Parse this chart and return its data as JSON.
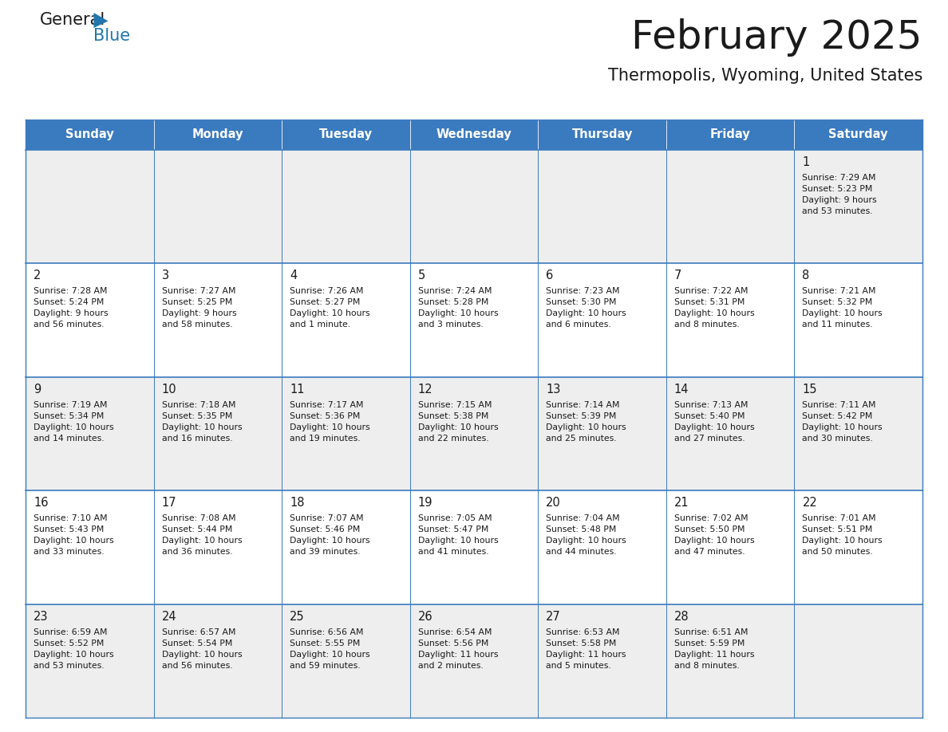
{
  "title": "February 2025",
  "subtitle": "Thermopolis, Wyoming, United States",
  "header_bg": "#3a7abf",
  "header_text_color": "#ffffff",
  "cell_bg_row0": "#eeeeee",
  "cell_bg_row1": "#ffffff",
  "border_color": "#3a7abf",
  "day_headers": [
    "Sunday",
    "Monday",
    "Tuesday",
    "Wednesday",
    "Thursday",
    "Friday",
    "Saturday"
  ],
  "title_color": "#1a1a1a",
  "subtitle_color": "#1a1a1a",
  "day_num_color": "#1a1a1a",
  "info_color": "#1a1a1a",
  "logo_general_color": "#1a1a1a",
  "logo_blue_color": "#2176ae",
  "calendar_data": [
    [
      null,
      null,
      null,
      null,
      null,
      null,
      {
        "day": 1,
        "sunrise": "7:29 AM",
        "sunset": "5:23 PM",
        "daylight": "9 hours\nand 53 minutes."
      }
    ],
    [
      {
        "day": 2,
        "sunrise": "7:28 AM",
        "sunset": "5:24 PM",
        "daylight": "9 hours\nand 56 minutes."
      },
      {
        "day": 3,
        "sunrise": "7:27 AM",
        "sunset": "5:25 PM",
        "daylight": "9 hours\nand 58 minutes."
      },
      {
        "day": 4,
        "sunrise": "7:26 AM",
        "sunset": "5:27 PM",
        "daylight": "10 hours\nand 1 minute."
      },
      {
        "day": 5,
        "sunrise": "7:24 AM",
        "sunset": "5:28 PM",
        "daylight": "10 hours\nand 3 minutes."
      },
      {
        "day": 6,
        "sunrise": "7:23 AM",
        "sunset": "5:30 PM",
        "daylight": "10 hours\nand 6 minutes."
      },
      {
        "day": 7,
        "sunrise": "7:22 AM",
        "sunset": "5:31 PM",
        "daylight": "10 hours\nand 8 minutes."
      },
      {
        "day": 8,
        "sunrise": "7:21 AM",
        "sunset": "5:32 PM",
        "daylight": "10 hours\nand 11 minutes."
      }
    ],
    [
      {
        "day": 9,
        "sunrise": "7:19 AM",
        "sunset": "5:34 PM",
        "daylight": "10 hours\nand 14 minutes."
      },
      {
        "day": 10,
        "sunrise": "7:18 AM",
        "sunset": "5:35 PM",
        "daylight": "10 hours\nand 16 minutes."
      },
      {
        "day": 11,
        "sunrise": "7:17 AM",
        "sunset": "5:36 PM",
        "daylight": "10 hours\nand 19 minutes."
      },
      {
        "day": 12,
        "sunrise": "7:15 AM",
        "sunset": "5:38 PM",
        "daylight": "10 hours\nand 22 minutes."
      },
      {
        "day": 13,
        "sunrise": "7:14 AM",
        "sunset": "5:39 PM",
        "daylight": "10 hours\nand 25 minutes."
      },
      {
        "day": 14,
        "sunrise": "7:13 AM",
        "sunset": "5:40 PM",
        "daylight": "10 hours\nand 27 minutes."
      },
      {
        "day": 15,
        "sunrise": "7:11 AM",
        "sunset": "5:42 PM",
        "daylight": "10 hours\nand 30 minutes."
      }
    ],
    [
      {
        "day": 16,
        "sunrise": "7:10 AM",
        "sunset": "5:43 PM",
        "daylight": "10 hours\nand 33 minutes."
      },
      {
        "day": 17,
        "sunrise": "7:08 AM",
        "sunset": "5:44 PM",
        "daylight": "10 hours\nand 36 minutes."
      },
      {
        "day": 18,
        "sunrise": "7:07 AM",
        "sunset": "5:46 PM",
        "daylight": "10 hours\nand 39 minutes."
      },
      {
        "day": 19,
        "sunrise": "7:05 AM",
        "sunset": "5:47 PM",
        "daylight": "10 hours\nand 41 minutes."
      },
      {
        "day": 20,
        "sunrise": "7:04 AM",
        "sunset": "5:48 PM",
        "daylight": "10 hours\nand 44 minutes."
      },
      {
        "day": 21,
        "sunrise": "7:02 AM",
        "sunset": "5:50 PM",
        "daylight": "10 hours\nand 47 minutes."
      },
      {
        "day": 22,
        "sunrise": "7:01 AM",
        "sunset": "5:51 PM",
        "daylight": "10 hours\nand 50 minutes."
      }
    ],
    [
      {
        "day": 23,
        "sunrise": "6:59 AM",
        "sunset": "5:52 PM",
        "daylight": "10 hours\nand 53 minutes."
      },
      {
        "day": 24,
        "sunrise": "6:57 AM",
        "sunset": "5:54 PM",
        "daylight": "10 hours\nand 56 minutes."
      },
      {
        "day": 25,
        "sunrise": "6:56 AM",
        "sunset": "5:55 PM",
        "daylight": "10 hours\nand 59 minutes."
      },
      {
        "day": 26,
        "sunrise": "6:54 AM",
        "sunset": "5:56 PM",
        "daylight": "11 hours\nand 2 minutes."
      },
      {
        "day": 27,
        "sunrise": "6:53 AM",
        "sunset": "5:58 PM",
        "daylight": "11 hours\nand 5 minutes."
      },
      {
        "day": 28,
        "sunrise": "6:51 AM",
        "sunset": "5:59 PM",
        "daylight": "11 hours\nand 8 minutes."
      },
      null
    ]
  ]
}
